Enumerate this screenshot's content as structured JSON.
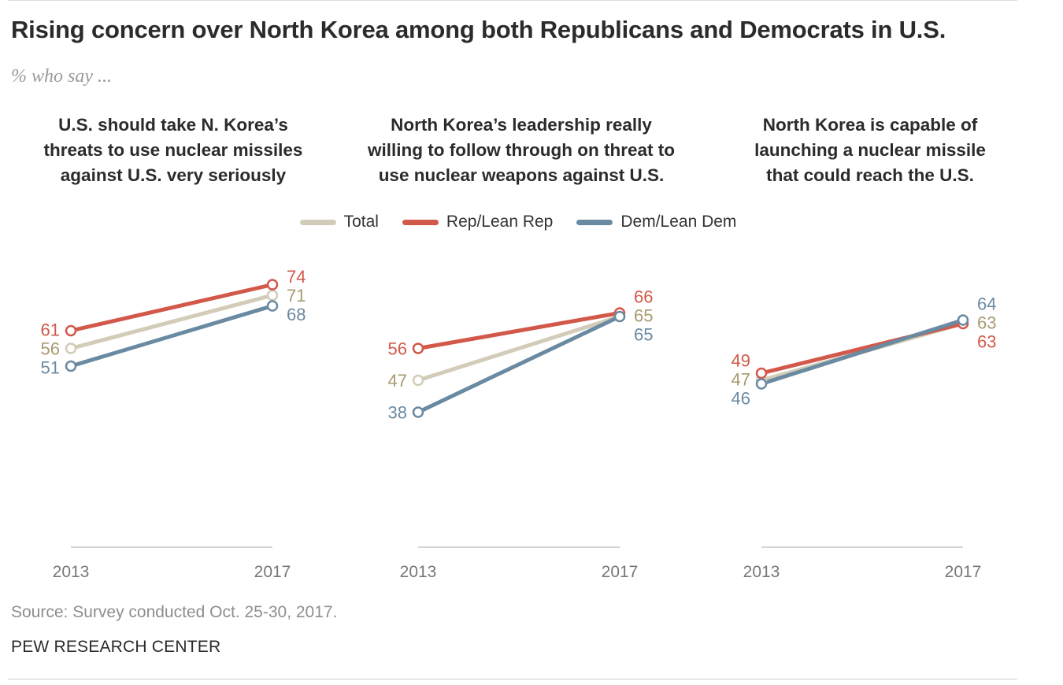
{
  "title": "Rising concern over North Korea among both Republicans and Democrats in U.S.",
  "subtitle": "% who say ...",
  "legend": [
    {
      "name": "Total",
      "color": "#d2ccb8"
    },
    {
      "name": "Rep/Lean Rep",
      "color": "#d2584a"
    },
    {
      "name": "Dem/Lean Dem",
      "color": "#6a8aa2"
    }
  ],
  "label_colors": {
    "Total": "#a8996f",
    "Rep/Lean Rep": "#d2584a",
    "Dem/Lean Dem": "#6a8aa2"
  },
  "chart_data": [
    {
      "type": "line",
      "title": "U.S. should take N. Korea's threats to use nuclear missiles against U.S. very seriously",
      "x": [
        "2013",
        "2017"
      ],
      "series": [
        {
          "name": "Total",
          "values": [
            56,
            71
          ]
        },
        {
          "name": "Rep/Lean Rep",
          "values": [
            61,
            74
          ]
        },
        {
          "name": "Dem/Lean Dem",
          "values": [
            51,
            68
          ]
        }
      ]
    },
    {
      "type": "line",
      "title": "North Korea's leadership really willing to follow through on threat to use nuclear weapons against U.S.",
      "x": [
        "2013",
        "2017"
      ],
      "series": [
        {
          "name": "Total",
          "values": [
            47,
            65
          ]
        },
        {
          "name": "Rep/Lean Rep",
          "values": [
            56,
            66
          ]
        },
        {
          "name": "Dem/Lean Dem",
          "values": [
            38,
            65
          ]
        }
      ]
    },
    {
      "type": "line",
      "title": "North Korea is capable of launching a nuclear missile that could reach the U.S.",
      "x": [
        "2013",
        "2017"
      ],
      "series": [
        {
          "name": "Total",
          "values": [
            47,
            63
          ]
        },
        {
          "name": "Rep/Lean Rep",
          "values": [
            49,
            63
          ]
        },
        {
          "name": "Dem/Lean Dem",
          "values": [
            46,
            64
          ]
        }
      ]
    }
  ],
  "panel_titles_display": [
    [
      "U.S. should take N. Korea’s",
      "threats to use nuclear missiles",
      "against U.S. very seriously"
    ],
    [
      "North Korea’s leadership really",
      "willing to follow through on threat to",
      "use nuclear weapons against U.S."
    ],
    [
      "North Korea is capable of",
      "launching a nuclear missile",
      "that could reach the U.S."
    ]
  ],
  "source": "Source: Survey conducted Oct. 25-30, 2017.",
  "brand": "PEW RESEARCH CENTER"
}
